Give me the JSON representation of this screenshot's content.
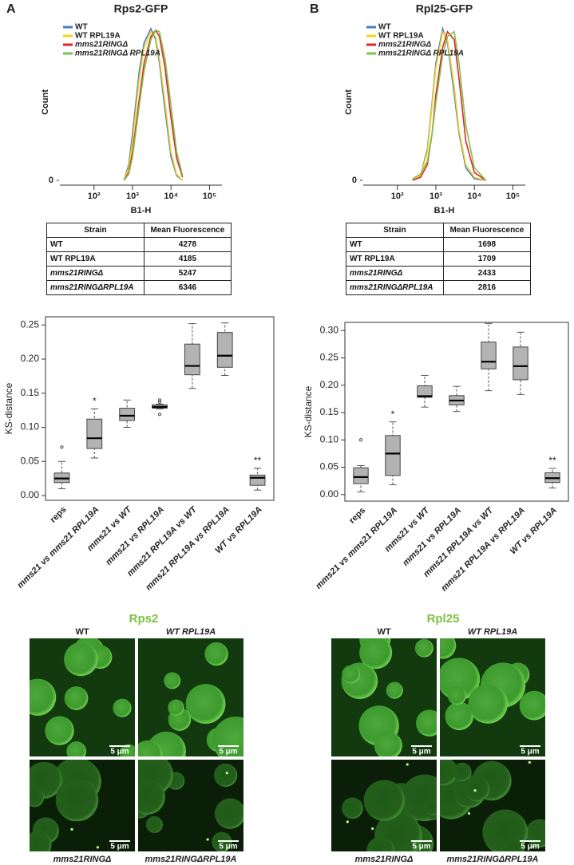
{
  "panel_labels": [
    "A",
    "B"
  ],
  "chart_data": [
    {
      "type": "line",
      "title": "Rps2-GFP",
      "x_label": "B1-H",
      "y_label": "Count",
      "xscale": "log",
      "xlim": [
        13,
        210000
      ],
      "ylim": [
        0,
        100
      ],
      "xticks": [
        {
          "value": 100,
          "label": "10²"
        },
        {
          "value": 1000,
          "label": "10³"
        },
        {
          "value": 10000,
          "label": "10⁴"
        },
        {
          "value": 100000,
          "label": "10⁵"
        }
      ],
      "yticks": [
        0
      ],
      "legend": "upper left",
      "x": [
        600,
        800,
        1000,
        1500,
        2000,
        3000,
        4000,
        5000,
        7000,
        10000,
        14000,
        20000
      ],
      "series": [
        {
          "name": "WT",
          "color": "#4a7fc1",
          "values": [
            0,
            10,
            30,
            70,
            88,
            97,
            90,
            75,
            45,
            15,
            3,
            0
          ]
        },
        {
          "name": "WT RPL19A",
          "color": "#f2d51e",
          "values": [
            0,
            8,
            25,
            65,
            85,
            95,
            92,
            78,
            50,
            18,
            4,
            0
          ]
        },
        {
          "name": "mms21RINGΔ",
          "color": "#e0242a",
          "values": [
            0,
            5,
            18,
            52,
            75,
            92,
            96,
            92,
            72,
            40,
            14,
            2
          ]
        },
        {
          "name": "mms21RINGΔ RPL19A",
          "color": "#7cc24a",
          "values": [
            0,
            4,
            15,
            48,
            70,
            90,
            96,
            95,
            78,
            48,
            18,
            3
          ]
        }
      ]
    },
    {
      "type": "line",
      "title": "Rpl25-GFP",
      "x_label": "B1-H",
      "y_label": "Count",
      "xscale": "log",
      "xlim": [
        13,
        210000
      ],
      "ylim": [
        0,
        100
      ],
      "xticks": [
        {
          "value": 100,
          "label": "10²"
        },
        {
          "value": 1000,
          "label": "10³"
        },
        {
          "value": 10000,
          "label": "10⁴"
        },
        {
          "value": 100000,
          "label": "10⁵"
        }
      ],
      "yticks": [
        0
      ],
      "legend": "upper left",
      "x": [
        250,
        400,
        600,
        800,
        1000,
        1500,
        2000,
        3000,
        4000,
        6000,
        10000,
        20000
      ],
      "series": [
        {
          "name": "WT",
          "color": "#4a7fc1",
          "values": [
            0,
            3,
            20,
            50,
            75,
            97,
            88,
            55,
            30,
            8,
            1,
            0
          ]
        },
        {
          "name": "WT RPL19A",
          "color": "#f2d51e",
          "values": [
            0,
            3,
            18,
            48,
            72,
            95,
            90,
            60,
            32,
            10,
            2,
            0
          ]
        },
        {
          "name": "mms21RINGΔ",
          "color": "#e0242a",
          "values": [
            0,
            2,
            10,
            30,
            55,
            85,
            95,
            90,
            65,
            25,
            5,
            0
          ]
        },
        {
          "name": "mms21RINGΔ RPL19A",
          "color": "#7cc24a",
          "values": [
            1,
            4,
            12,
            30,
            50,
            80,
            92,
            95,
            75,
            35,
            8,
            0
          ]
        }
      ]
    },
    {
      "type": "box",
      "y_label": "KS-distance",
      "color": "#b3b3b3",
      "ylim": [
        -0.007,
        0.262
      ],
      "yticks": [
        {
          "value": 0,
          "label": "0.00"
        },
        {
          "value": 0.05,
          "label": "0.05"
        },
        {
          "value": 0.1,
          "label": "0.10"
        },
        {
          "value": 0.15,
          "label": "0.15"
        },
        {
          "value": 0.2,
          "label": "0.20"
        },
        {
          "value": 0.25,
          "label": "0.25"
        }
      ],
      "categories": [
        "reps",
        "mms21 vs mms21 RPL19A",
        "mms21 vs WT",
        "mms21 vs RPL19A",
        "mms21 RPL19A vs WT",
        "mms21 RPL19A vs RPL19A",
        "WT vs RPL19A"
      ],
      "boxes": [
        {
          "min": 0.01,
          "q1": 0.019,
          "median": 0.025,
          "q3": 0.033,
          "max": 0.05,
          "outliers": [
            0.071
          ]
        },
        {
          "min": 0.055,
          "q1": 0.069,
          "median": 0.084,
          "q3": 0.112,
          "max": 0.127,
          "outliers": [],
          "annotation": "*"
        },
        {
          "min": 0.1,
          "q1": 0.11,
          "median": 0.117,
          "q3": 0.128,
          "max": 0.14,
          "outliers": []
        },
        {
          "min": 0.127,
          "q1": 0.128,
          "median": 0.13,
          "q3": 0.133,
          "max": 0.134,
          "outliers": [
            0.119,
            0.137,
            0.14
          ]
        },
        {
          "min": 0.157,
          "q1": 0.177,
          "median": 0.19,
          "q3": 0.222,
          "max": 0.252,
          "outliers": []
        },
        {
          "min": 0.176,
          "q1": 0.188,
          "median": 0.205,
          "q3": 0.239,
          "max": 0.253,
          "outliers": []
        },
        {
          "min": 0.008,
          "q1": 0.015,
          "median": 0.026,
          "q3": 0.03,
          "max": 0.04,
          "outliers": [],
          "annotation": "**"
        }
      ]
    },
    {
      "type": "box",
      "y_label": "KS-distance",
      "color": "#b3b3b3",
      "ylim": [
        -0.012,
        0.315
      ],
      "yticks": [
        {
          "value": 0,
          "label": "0.00"
        },
        {
          "value": 0.05,
          "label": "0.05"
        },
        {
          "value": 0.1,
          "label": "0.10"
        },
        {
          "value": 0.15,
          "label": "0.15"
        },
        {
          "value": 0.2,
          "label": "0.20"
        },
        {
          "value": 0.25,
          "label": "0.25"
        },
        {
          "value": 0.3,
          "label": "0.30"
        }
      ],
      "categories": [
        "reps",
        "mms21 vs mms21 RPL19A",
        "mms21 vs WT",
        "mms21 vs RPL19A",
        "mms21 RPL19A vs WT",
        "mms21 RPL19A vs RPL19A",
        "WT vs RPL19A"
      ],
      "boxes": [
        {
          "min": 0.005,
          "q1": 0.02,
          "median": 0.032,
          "q3": 0.049,
          "max": 0.053,
          "outliers": [
            0.1
          ]
        },
        {
          "min": 0.018,
          "q1": 0.035,
          "median": 0.075,
          "q3": 0.108,
          "max": 0.133,
          "outliers": [],
          "annotation": "*"
        },
        {
          "min": 0.16,
          "q1": 0.178,
          "median": 0.18,
          "q3": 0.199,
          "max": 0.218,
          "outliers": []
        },
        {
          "min": 0.152,
          "q1": 0.164,
          "median": 0.172,
          "q3": 0.181,
          "max": 0.198,
          "outliers": []
        },
        {
          "min": 0.19,
          "q1": 0.23,
          "median": 0.243,
          "q3": 0.279,
          "max": 0.313,
          "outliers": []
        },
        {
          "min": 0.183,
          "q1": 0.21,
          "median": 0.235,
          "q3": 0.27,
          "max": 0.297,
          "outliers": []
        },
        {
          "min": 0.012,
          "q1": 0.022,
          "median": 0.03,
          "q3": 0.04,
          "max": 0.048,
          "outliers": [],
          "annotation": "**"
        }
      ]
    }
  ],
  "tables": [
    {
      "columns": [
        "Strain",
        "Mean Fluorescence"
      ],
      "rows": [
        [
          "WT",
          4278
        ],
        [
          "WT RPL19A",
          4185
        ],
        [
          "mms21RINGΔ",
          5247
        ],
        [
          "mms21RINGΔRPL19A",
          6346
        ]
      ]
    },
    {
      "columns": [
        "Strain",
        "Mean Fluorescence"
      ],
      "rows": [
        [
          "WT",
          1698
        ],
        [
          "WT RPL19A",
          1709
        ],
        [
          "mms21RINGΔ",
          2433
        ],
        [
          "mms21RINGΔRPL19A",
          2816
        ]
      ]
    }
  ],
  "micrographs": [
    {
      "title": "Rps2",
      "columns": [
        "WT",
        "WT RPL19A"
      ],
      "rows": [
        "mms21RINGΔ",
        "mms21RINGΔRPL19A"
      ],
      "scale_bar": "5 μm"
    },
    {
      "title": "Rpl25",
      "columns": [
        "WT",
        "WT RPL19A"
      ],
      "rows": [
        "mms21RINGΔ",
        "mms21RINGΔRPL19A"
      ],
      "scale_bar": "5 μm"
    }
  ]
}
